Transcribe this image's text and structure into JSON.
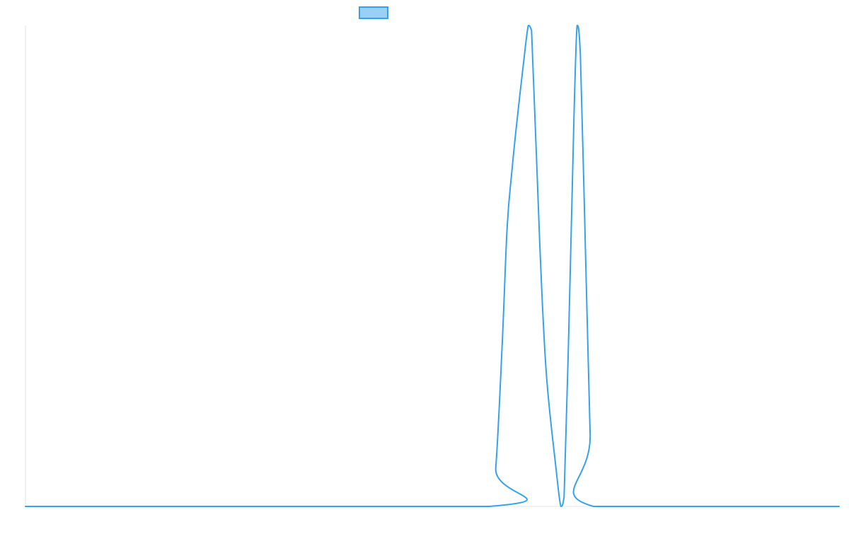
{
  "chart_data": {
    "type": "line",
    "title": "",
    "xlabel": "",
    "ylabel": "",
    "grid": false,
    "legend": {
      "position": "top-center",
      "show_label": false
    },
    "xlim": [
      0,
      50
    ],
    "ylim": [
      0,
      1
    ],
    "series": [
      {
        "color": "#36a2eb",
        "fill": "#9ad0f5",
        "points": [
          {
            "x": 0,
            "y": 0
          },
          {
            "x": 28.5,
            "y": 0
          },
          {
            "x": 28.9,
            "y": 0.08
          },
          {
            "x": 29.3,
            "y": 0.34
          },
          {
            "x": 29.6,
            "y": 0.58
          },
          {
            "x": 29.9,
            "y": 0.7
          },
          {
            "x": 30.2,
            "y": 0.8
          },
          {
            "x": 30.6,
            "y": 0.92
          },
          {
            "x": 30.9,
            "y": 1.0
          },
          {
            "x": 31.1,
            "y": 0.99
          },
          {
            "x": 31.6,
            "y": 0.55
          },
          {
            "x": 32.0,
            "y": 0.28
          },
          {
            "x": 32.6,
            "y": 0.08
          },
          {
            "x": 32.9,
            "y": 0.0
          },
          {
            "x": 33.1,
            "y": 0.02
          },
          {
            "x": 33.4,
            "y": 0.38
          },
          {
            "x": 33.7,
            "y": 0.8
          },
          {
            "x": 33.9,
            "y": 1.0
          },
          {
            "x": 34.1,
            "y": 0.94
          },
          {
            "x": 34.4,
            "y": 0.55
          },
          {
            "x": 34.7,
            "y": 0.15
          },
          {
            "x": 34.9,
            "y": 0.0
          },
          {
            "x": 50,
            "y": 0
          }
        ]
      }
    ]
  }
}
